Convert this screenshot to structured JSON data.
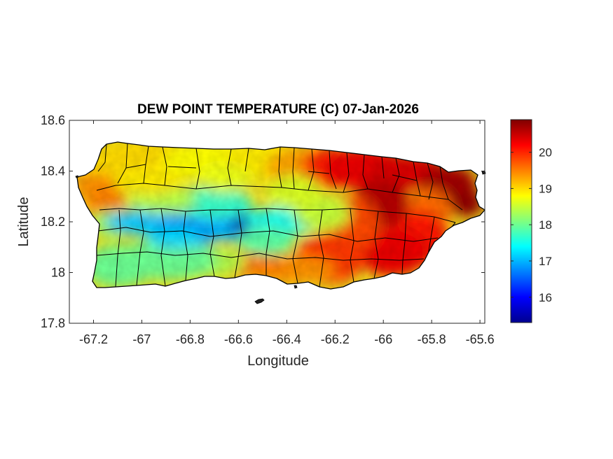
{
  "figure": {
    "title": "DEW POINT TEMPERATURE (C) 07-Jan-2026",
    "xlabel": "Longitude",
    "ylabel": "Latitude"
  },
  "axes": {
    "xlim": [
      -67.3,
      -65.58
    ],
    "ylim": [
      17.8,
      18.6
    ],
    "xticks": [
      -67.2,
      -67,
      -66.8,
      -66.6,
      -66.4,
      -66.2,
      -66,
      -65.8,
      -65.6
    ],
    "yticks": [
      17.8,
      18,
      18.2,
      18.4,
      18.6
    ],
    "xtick_labels": [
      "-67.2",
      "-67",
      "-66.8",
      "-66.6",
      "-66.4",
      "-66.2",
      "-66",
      "-65.8",
      "-65.6"
    ],
    "ytick_labels": [
      "17.8",
      "18",
      "18.2",
      "18.4",
      "18.6"
    ]
  },
  "colorbar": {
    "colormap": "jet",
    "range": [
      15.3,
      20.9
    ],
    "ticks": [
      16,
      17,
      18,
      19,
      20
    ],
    "tick_labels": [
      "16",
      "17",
      "18",
      "19",
      "20"
    ]
  },
  "colors": {
    "boundary": "#000000",
    "frame": "#262626",
    "text": "#262626"
  }
}
